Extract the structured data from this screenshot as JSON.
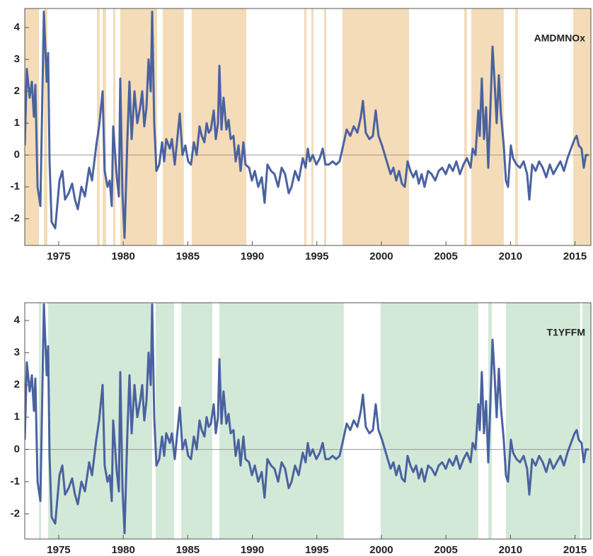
{
  "chart_data": [
    {
      "type": "line",
      "label": "AMDMNOx",
      "color": "#4a62a0",
      "shade_color": "#f4dcb8",
      "xlim": [
        1972.37,
        2016.23
      ],
      "ylim": [
        -2.84,
        4.6
      ],
      "xticks": [
        1975,
        1980,
        1985,
        1990,
        1995,
        2000,
        2005,
        2010,
        2015
      ],
      "yticks": [
        -2,
        -1,
        0,
        1,
        2,
        3,
        4
      ],
      "hline": 0,
      "shaded": [
        [
          1972.37,
          1973.47
        ],
        [
          1973.85,
          1974.12
        ],
        [
          1977.96,
          1978.18
        ],
        [
          1978.4,
          1978.67
        ],
        [
          1979.22,
          1979.39
        ],
        [
          1979.77,
          1982.62
        ],
        [
          1983.06,
          1984.7
        ],
        [
          1985.3,
          1989.53
        ],
        [
          1994.02,
          1994.19
        ],
        [
          1994.57,
          1994.74
        ],
        [
          1995.56,
          1995.72
        ],
        [
          1996.98,
          2002.14
        ],
        [
          2006.41,
          2006.63
        ],
        [
          2006.96,
          2009.48
        ],
        [
          2010.36,
          2010.58
        ],
        [
          2014.86,
          2016.23
        ]
      ],
      "x": [
        1972.37,
        1972.53,
        1972.75,
        1972.92,
        1973.08,
        1973.19,
        1973.36,
        1973.58,
        1973.85,
        1974.07,
        1974.18,
        1974.29,
        1974.45,
        1974.73,
        1975.06,
        1975.28,
        1975.49,
        1975.77,
        1976.04,
        1976.26,
        1976.48,
        1976.76,
        1977.03,
        1977.36,
        1977.58,
        1977.91,
        1978.13,
        1978.4,
        1978.56,
        1978.78,
        1978.95,
        1979.11,
        1979.22,
        1979.5,
        1979.66,
        1979.77,
        1979.94,
        1980.1,
        1980.32,
        1980.48,
        1980.65,
        1980.87,
        1981.09,
        1981.31,
        1981.47,
        1981.63,
        1981.8,
        1981.96,
        1982.13,
        1982.24,
        1982.4,
        1982.57,
        1982.79,
        1983.01,
        1983.17,
        1983.33,
        1983.61,
        1983.77,
        1983.99,
        1984.16,
        1984.38,
        1984.59,
        1984.81,
        1985.03,
        1985.25,
        1985.47,
        1985.69,
        1985.91,
        1986.08,
        1986.29,
        1986.46,
        1986.62,
        1986.79,
        1987.01,
        1987.17,
        1987.34,
        1987.45,
        1987.61,
        1987.77,
        1987.99,
        1988.16,
        1988.32,
        1988.54,
        1988.71,
        1988.93,
        1989.09,
        1989.31,
        1989.47,
        1989.75,
        1989.97,
        1990.19,
        1990.46,
        1990.73,
        1990.95,
        1991.17,
        1991.45,
        1991.72,
        1992.0,
        1992.27,
        1992.54,
        1992.82,
        1993.04,
        1993.31,
        1993.59,
        1993.91,
        1994.13,
        1994.3,
        1994.46,
        1994.68,
        1994.96,
        1995.23,
        1995.45,
        1995.67,
        1995.94,
        1996.22,
        1996.49,
        1996.76,
        1997.04,
        1997.31,
        1997.59,
        1997.86,
        1998.14,
        1998.41,
        1998.57,
        1998.79,
        1999.07,
        1999.34,
        1999.56,
        1999.78,
        2000.05,
        2000.27,
        2000.49,
        2000.71,
        2000.93,
        2001.15,
        2001.37,
        2001.59,
        2001.81,
        2002.03,
        2002.25,
        2002.47,
        2002.69,
        2002.9,
        2003.12,
        2003.34,
        2003.62,
        2003.89,
        2004.17,
        2004.44,
        2004.71,
        2004.99,
        2005.26,
        2005.54,
        2005.81,
        2006.08,
        2006.36,
        2006.63,
        2006.91,
        2007.07,
        2007.29,
        2007.51,
        2007.62,
        2007.78,
        2007.95,
        2008.11,
        2008.28,
        2008.44,
        2008.61,
        2008.77,
        2008.93,
        2009.1,
        2009.26,
        2009.48,
        2009.65,
        2009.81,
        2010.03,
        2010.2,
        2010.47,
        2010.74,
        2011.02,
        2011.29,
        2011.46,
        2011.68,
        2011.95,
        2012.22,
        2012.5,
        2012.77,
        2013.05,
        2013.32,
        2013.59,
        2013.87,
        2014.14,
        2014.42,
        2014.69,
        2014.97,
        2015.13,
        2015.29,
        2015.51,
        2015.68,
        2015.84,
        2016.06
      ],
      "values": [
        0.3,
        2.7,
        1.8,
        2.3,
        1.2,
        2.2,
        -1.0,
        -1.6,
        4.5,
        2.3,
        3.2,
        -0.2,
        -2.1,
        -2.3,
        -0.8,
        -0.5,
        -1.4,
        -1.2,
        -0.9,
        -1.4,
        -1.7,
        -1.0,
        -1.3,
        -0.4,
        -0.8,
        0.3,
        0.9,
        2.0,
        -0.5,
        -1.0,
        -0.8,
        -1.6,
        0.9,
        -0.7,
        -1.3,
        2.4,
        -1.2,
        -2.6,
        0.5,
        2.3,
        0.5,
        2.0,
        1.0,
        1.5,
        2.0,
        0.9,
        1.5,
        3.0,
        2.0,
        4.5,
        1.0,
        -0.5,
        -0.3,
        0.4,
        -0.2,
        0.5,
        0.2,
        0.5,
        -0.3,
        0.4,
        1.3,
        0.0,
        0.3,
        -0.2,
        -0.3,
        0.4,
        0.0,
        0.9,
        0.6,
        0.4,
        1.0,
        0.7,
        0.8,
        1.4,
        0.5,
        1.0,
        2.8,
        0.8,
        1.8,
        0.8,
        1.1,
        0.5,
        0.6,
        -0.2,
        0.3,
        -0.5,
        0.4,
        -0.3,
        -0.4,
        -0.8,
        -0.5,
        -1.0,
        -0.7,
        -1.5,
        -0.3,
        -0.5,
        -0.6,
        -1.0,
        -0.4,
        -0.6,
        -1.2,
        -1.0,
        -0.5,
        -0.8,
        -0.1,
        -0.4,
        0.2,
        -0.2,
        0.0,
        -0.3,
        -0.1,
        0.2,
        -0.3,
        -0.3,
        -0.2,
        -0.3,
        -0.2,
        0.3,
        0.8,
        0.6,
        0.9,
        0.7,
        1.2,
        1.7,
        0.7,
        0.5,
        0.6,
        1.4,
        0.6,
        0.3,
        0.0,
        -0.3,
        -0.6,
        -0.4,
        -0.8,
        -0.5,
        -0.9,
        -1.0,
        -0.2,
        -0.5,
        -0.7,
        -0.5,
        -0.9,
        -0.6,
        -1.0,
        -0.5,
        -0.6,
        -0.8,
        -0.5,
        -0.4,
        -0.6,
        -0.3,
        -0.5,
        -0.2,
        -0.6,
        -0.3,
        -0.1,
        -0.4,
        0.2,
        0.0,
        1.4,
        0.6,
        2.4,
        0.5,
        1.5,
        -0.4,
        1.4,
        3.4,
        2.3,
        1.0,
        2.5,
        1.3,
        0.3,
        -0.8,
        -1.0,
        0.3,
        -0.1,
        -0.3,
        -0.4,
        -0.2,
        -0.6,
        -1.4,
        -0.3,
        -0.5,
        -0.2,
        -0.4,
        -0.7,
        -0.3,
        -0.6,
        -0.4,
        -0.2,
        -0.5,
        -0.1,
        0.2,
        0.5,
        0.6,
        0.3,
        0.2,
        -0.4,
        0.0,
        0.0
      ]
    },
    {
      "type": "line",
      "label": "T1YFFM",
      "color": "#4a62a0",
      "shade_color": "#d3e9d8",
      "xlim": [
        1972.37,
        2016.23
      ],
      "ylim": [
        -2.78,
        4.55
      ],
      "xticks": [
        1975,
        1980,
        1985,
        1990,
        1995,
        2000,
        2005,
        2010,
        2015
      ],
      "yticks": [
        -2,
        -1,
        0,
        1,
        2,
        3,
        4
      ],
      "hline": 0,
      "shaded": [
        [
          1973.47,
          1973.63
        ],
        [
          1974.18,
          1982.24
        ],
        [
          1982.51,
          1983.94
        ],
        [
          1984.48,
          1986.9
        ],
        [
          1987.45,
          1997.09
        ],
        [
          1999.94,
          2007.51
        ],
        [
          2008.28,
          2008.55
        ],
        [
          2009.65,
          2015.4
        ],
        [
          2015.57,
          2016.23
        ]
      ],
      "x": [
        1972.37,
        1972.53,
        1972.75,
        1972.92,
        1973.08,
        1973.19,
        1973.36,
        1973.58,
        1973.85,
        1974.07,
        1974.18,
        1974.29,
        1974.45,
        1974.73,
        1975.06,
        1975.28,
        1975.49,
        1975.77,
        1976.04,
        1976.26,
        1976.48,
        1976.76,
        1977.03,
        1977.36,
        1977.58,
        1977.91,
        1978.13,
        1978.4,
        1978.56,
        1978.78,
        1978.95,
        1979.11,
        1979.22,
        1979.5,
        1979.66,
        1979.77,
        1979.94,
        1980.1,
        1980.32,
        1980.48,
        1980.65,
        1980.87,
        1981.09,
        1981.31,
        1981.47,
        1981.63,
        1981.8,
        1981.96,
        1982.13,
        1982.24,
        1982.4,
        1982.57,
        1982.79,
        1983.01,
        1983.17,
        1983.33,
        1983.61,
        1983.77,
        1983.99,
        1984.16,
        1984.38,
        1984.59,
        1984.81,
        1985.03,
        1985.25,
        1985.47,
        1985.69,
        1985.91,
        1986.08,
        1986.29,
        1986.46,
        1986.62,
        1986.79,
        1987.01,
        1987.17,
        1987.34,
        1987.45,
        1987.61,
        1987.77,
        1987.99,
        1988.16,
        1988.32,
        1988.54,
        1988.71,
        1988.93,
        1989.09,
        1989.31,
        1989.47,
        1989.75,
        1989.97,
        1990.19,
        1990.46,
        1990.73,
        1990.95,
        1991.17,
        1991.45,
        1991.72,
        1992.0,
        1992.27,
        1992.54,
        1992.82,
        1993.04,
        1993.31,
        1993.59,
        1993.91,
        1994.13,
        1994.3,
        1994.46,
        1994.68,
        1994.96,
        1995.23,
        1995.45,
        1995.67,
        1995.94,
        1996.22,
        1996.49,
        1996.76,
        1997.04,
        1997.31,
        1997.59,
        1997.86,
        1998.14,
        1998.41,
        1998.57,
        1998.79,
        1999.07,
        1999.34,
        1999.56,
        1999.78,
        2000.05,
        2000.27,
        2000.49,
        2000.71,
        2000.93,
        2001.15,
        2001.37,
        2001.59,
        2001.81,
        2002.03,
        2002.25,
        2002.47,
        2002.69,
        2002.9,
        2003.12,
        2003.34,
        2003.62,
        2003.89,
        2004.17,
        2004.44,
        2004.71,
        2004.99,
        2005.26,
        2005.54,
        2005.81,
        2006.08,
        2006.36,
        2006.63,
        2006.91,
        2007.07,
        2007.29,
        2007.51,
        2007.62,
        2007.78,
        2007.95,
        2008.11,
        2008.28,
        2008.44,
        2008.61,
        2008.77,
        2008.93,
        2009.1,
        2009.26,
        2009.48,
        2009.65,
        2009.81,
        2010.03,
        2010.2,
        2010.47,
        2010.74,
        2011.02,
        2011.29,
        2011.46,
        2011.68,
        2011.95,
        2012.22,
        2012.5,
        2012.77,
        2013.05,
        2013.32,
        2013.59,
        2013.87,
        2014.14,
        2014.42,
        2014.69,
        2014.97,
        2015.13,
        2015.29,
        2015.51,
        2015.68,
        2015.84,
        2016.06
      ],
      "values": [
        0.3,
        2.7,
        1.8,
        2.3,
        1.2,
        2.2,
        -1.0,
        -1.6,
        4.5,
        2.3,
        3.2,
        -0.2,
        -2.1,
        -2.3,
        -0.8,
        -0.5,
        -1.4,
        -1.2,
        -0.9,
        -1.4,
        -1.7,
        -1.0,
        -1.3,
        -0.4,
        -0.8,
        0.3,
        0.9,
        2.0,
        -0.5,
        -1.0,
        -0.8,
        -1.6,
        0.9,
        -0.7,
        -1.3,
        2.4,
        -1.2,
        -2.6,
        0.5,
        2.3,
        0.5,
        2.0,
        1.0,
        1.5,
        2.0,
        0.9,
        1.5,
        3.0,
        2.0,
        4.5,
        1.0,
        -0.5,
        -0.3,
        0.4,
        -0.2,
        0.5,
        0.2,
        0.5,
        -0.3,
        0.4,
        1.3,
        0.0,
        0.3,
        -0.2,
        -0.3,
        0.4,
        0.0,
        0.9,
        0.6,
        0.4,
        1.0,
        0.7,
        0.8,
        1.4,
        0.5,
        1.0,
        2.8,
        0.8,
        1.8,
        0.8,
        1.1,
        0.5,
        0.6,
        -0.2,
        0.3,
        -0.5,
        0.4,
        -0.3,
        -0.4,
        -0.8,
        -0.5,
        -1.0,
        -0.7,
        -1.5,
        -0.3,
        -0.5,
        -0.6,
        -1.0,
        -0.4,
        -0.6,
        -1.2,
        -1.0,
        -0.5,
        -0.8,
        -0.1,
        -0.4,
        0.2,
        -0.2,
        0.0,
        -0.3,
        -0.1,
        0.2,
        -0.3,
        -0.3,
        -0.2,
        -0.3,
        -0.2,
        0.3,
        0.8,
        0.6,
        0.9,
        0.7,
        1.2,
        1.7,
        0.7,
        0.5,
        0.6,
        1.4,
        0.6,
        0.3,
        0.0,
        -0.3,
        -0.6,
        -0.4,
        -0.8,
        -0.5,
        -0.9,
        -1.0,
        -0.2,
        -0.5,
        -0.7,
        -0.5,
        -0.9,
        -0.6,
        -1.0,
        -0.5,
        -0.6,
        -0.8,
        -0.5,
        -0.4,
        -0.6,
        -0.3,
        -0.5,
        -0.2,
        -0.6,
        -0.3,
        -0.1,
        -0.4,
        0.2,
        0.0,
        1.4,
        0.6,
        2.4,
        0.5,
        1.5,
        -0.4,
        1.4,
        3.4,
        2.3,
        1.0,
        2.5,
        1.3,
        0.3,
        -0.8,
        -1.0,
        0.3,
        -0.1,
        -0.3,
        -0.4,
        -0.2,
        -0.6,
        -1.4,
        -0.3,
        -0.5,
        -0.2,
        -0.4,
        -0.7,
        -0.3,
        -0.6,
        -0.4,
        -0.2,
        -0.5,
        -0.1,
        0.2,
        0.5,
        0.6,
        0.3,
        0.2,
        -0.4,
        0.0,
        0.0
      ]
    }
  ]
}
